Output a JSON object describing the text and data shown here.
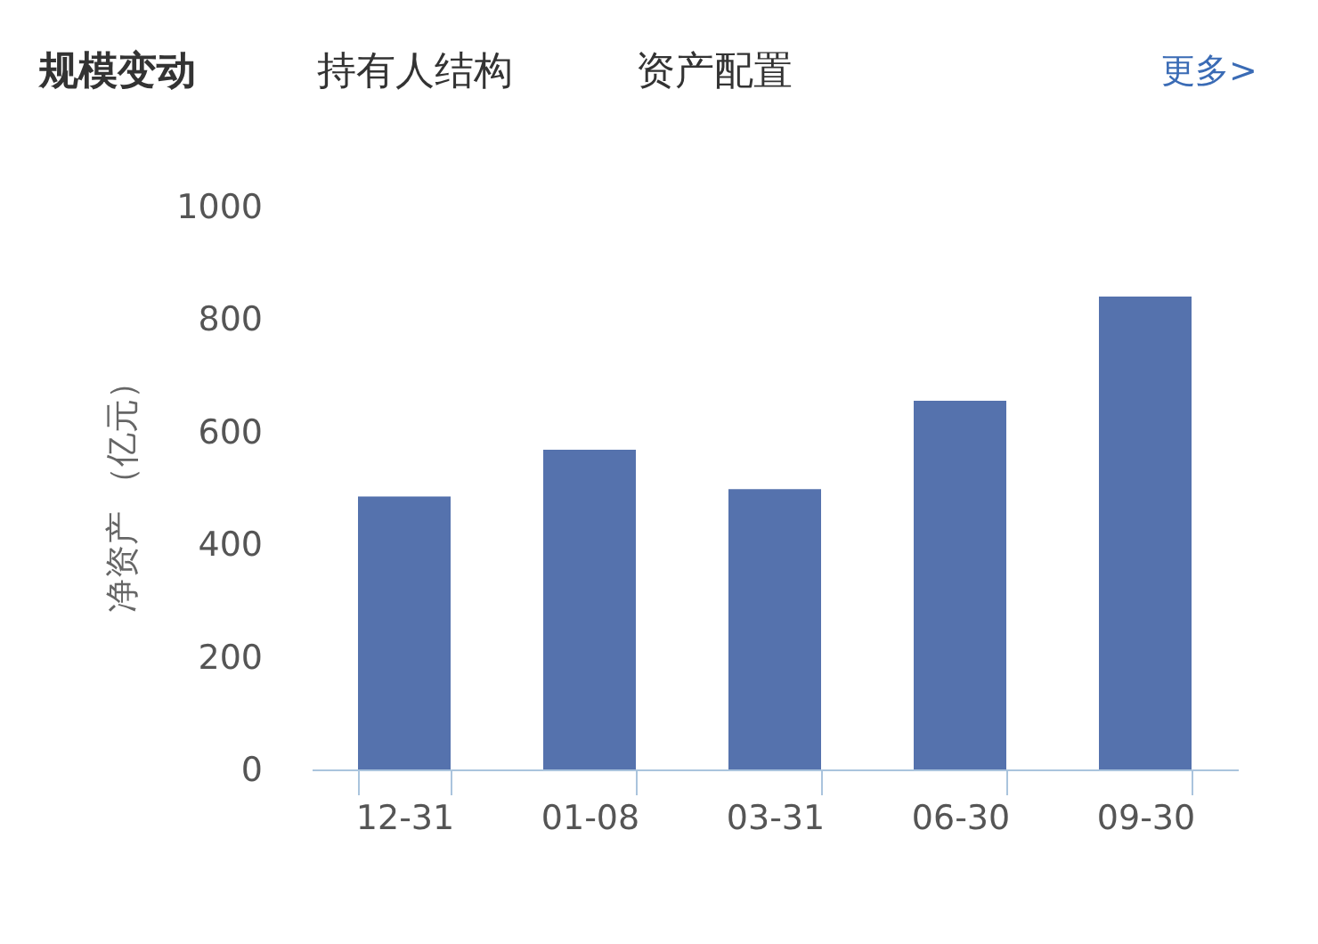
{
  "chart_data": {
    "type": "bar",
    "title": "规模变动",
    "annotations": [
      "持有人结构",
      "资产配置",
      "更多>"
    ],
    "ylabel": "净资产 （亿元）",
    "categories": [
      "12-31",
      "01-08",
      "03-31",
      "06-30",
      "09-30"
    ],
    "values": [
      485,
      568,
      498,
      655,
      840
    ],
    "color": "#5572ad",
    "ylim": [
      0,
      1000
    ],
    "yticks": [
      0,
      200,
      400,
      600,
      800,
      1000
    ],
    "grid": false
  }
}
